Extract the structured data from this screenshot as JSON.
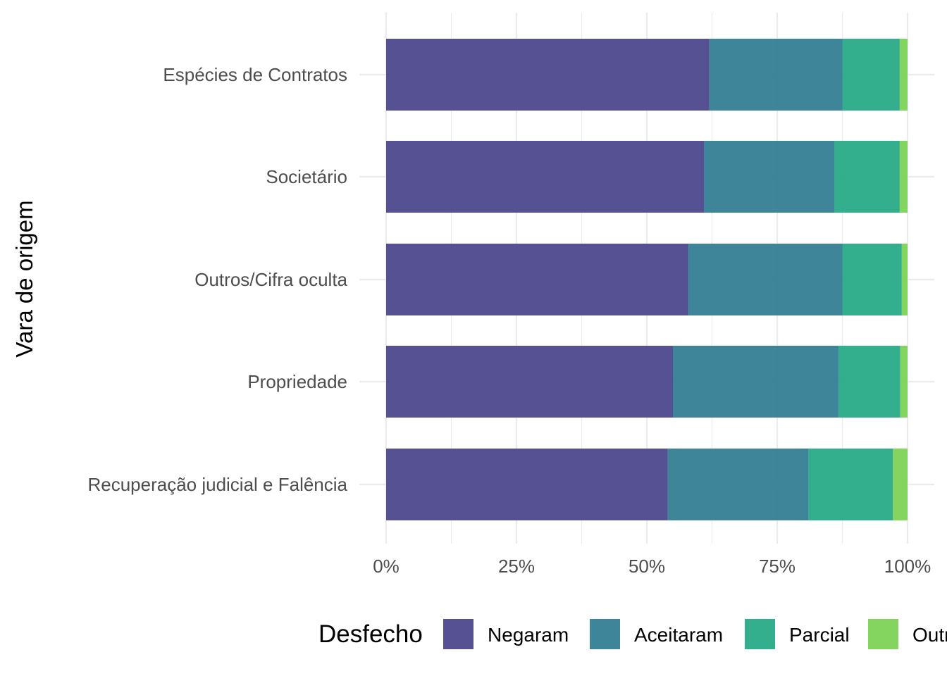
{
  "chart_data": {
    "type": "bar",
    "orientation": "horizontal",
    "stacked": "percent",
    "title": "",
    "xlabel": "",
    "ylabel": "Vara de origem",
    "categories": [
      "Espécies de Contratos",
      "Societário",
      "Outros/Cifra oculta",
      "Propriedade",
      "Recuperação judicial e Falência"
    ],
    "series": [
      {
        "name": "Negaram",
        "color": "#46428a",
        "values": [
          0.62,
          0.61,
          0.58,
          0.55,
          0.54
        ]
      },
      {
        "name": "Aceitaram",
        "color": "#2e7b91",
        "values": [
          0.255,
          0.25,
          0.295,
          0.318,
          0.27
        ]
      },
      {
        "name": "Parcial",
        "color": "#22a884",
        "values": [
          0.11,
          0.125,
          0.114,
          0.118,
          0.162
        ]
      },
      {
        "name": "Outros",
        "color": "#7ad151",
        "values": [
          0.015,
          0.015,
          0.011,
          0.014,
          0.028
        ]
      }
    ],
    "xlim": [
      0,
      1
    ],
    "xticks": [
      0,
      0.25,
      0.5,
      0.75,
      1
    ],
    "xtick_labels": [
      "0%",
      "25%",
      "50%",
      "75%",
      "100%"
    ],
    "grid": true,
    "legend": {
      "title": "Desfecho",
      "position": "bottom"
    }
  }
}
